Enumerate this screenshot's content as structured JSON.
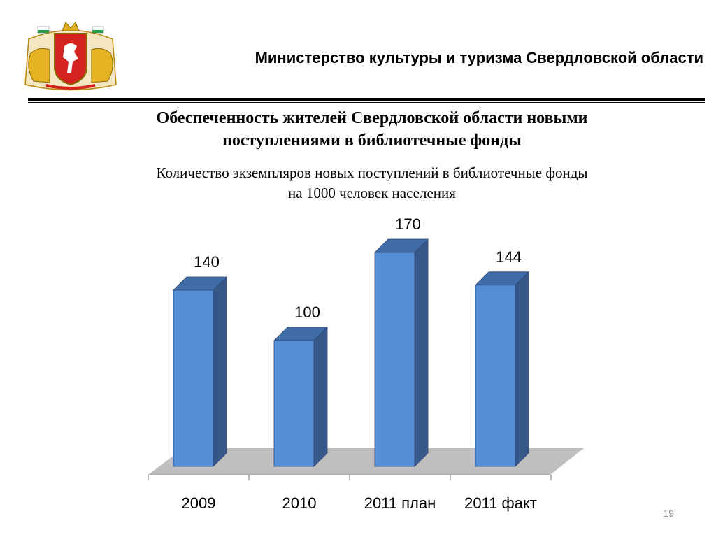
{
  "header": {
    "ministry": "Министерство культуры  и туризма Свердловской области"
  },
  "slide": {
    "title_line1": "Обеспеченность жителей Свердловской области новыми",
    "title_line2": "поступлениями в библиотечные фонды",
    "subtitle_line1": "Количество экземпляров новых поступлений в библиотечные фонды",
    "subtitle_line2": "на 1000 человек населения",
    "page_number": "19"
  },
  "colors": {
    "bar_front": "#558ED5",
    "bar_side": "#37598A",
    "bar_top": "#3F6BA6",
    "floor": "#BFBFBF"
  },
  "chart_data": {
    "type": "bar",
    "categories": [
      "2009",
      "2010",
      "2011 план",
      "2011 факт"
    ],
    "values": [
      140,
      100,
      170,
      144
    ],
    "title": "",
    "xlabel": "",
    "ylabel": "",
    "ylim": [
      0,
      170
    ],
    "grid": false,
    "legend": "none",
    "style": "3d"
  }
}
